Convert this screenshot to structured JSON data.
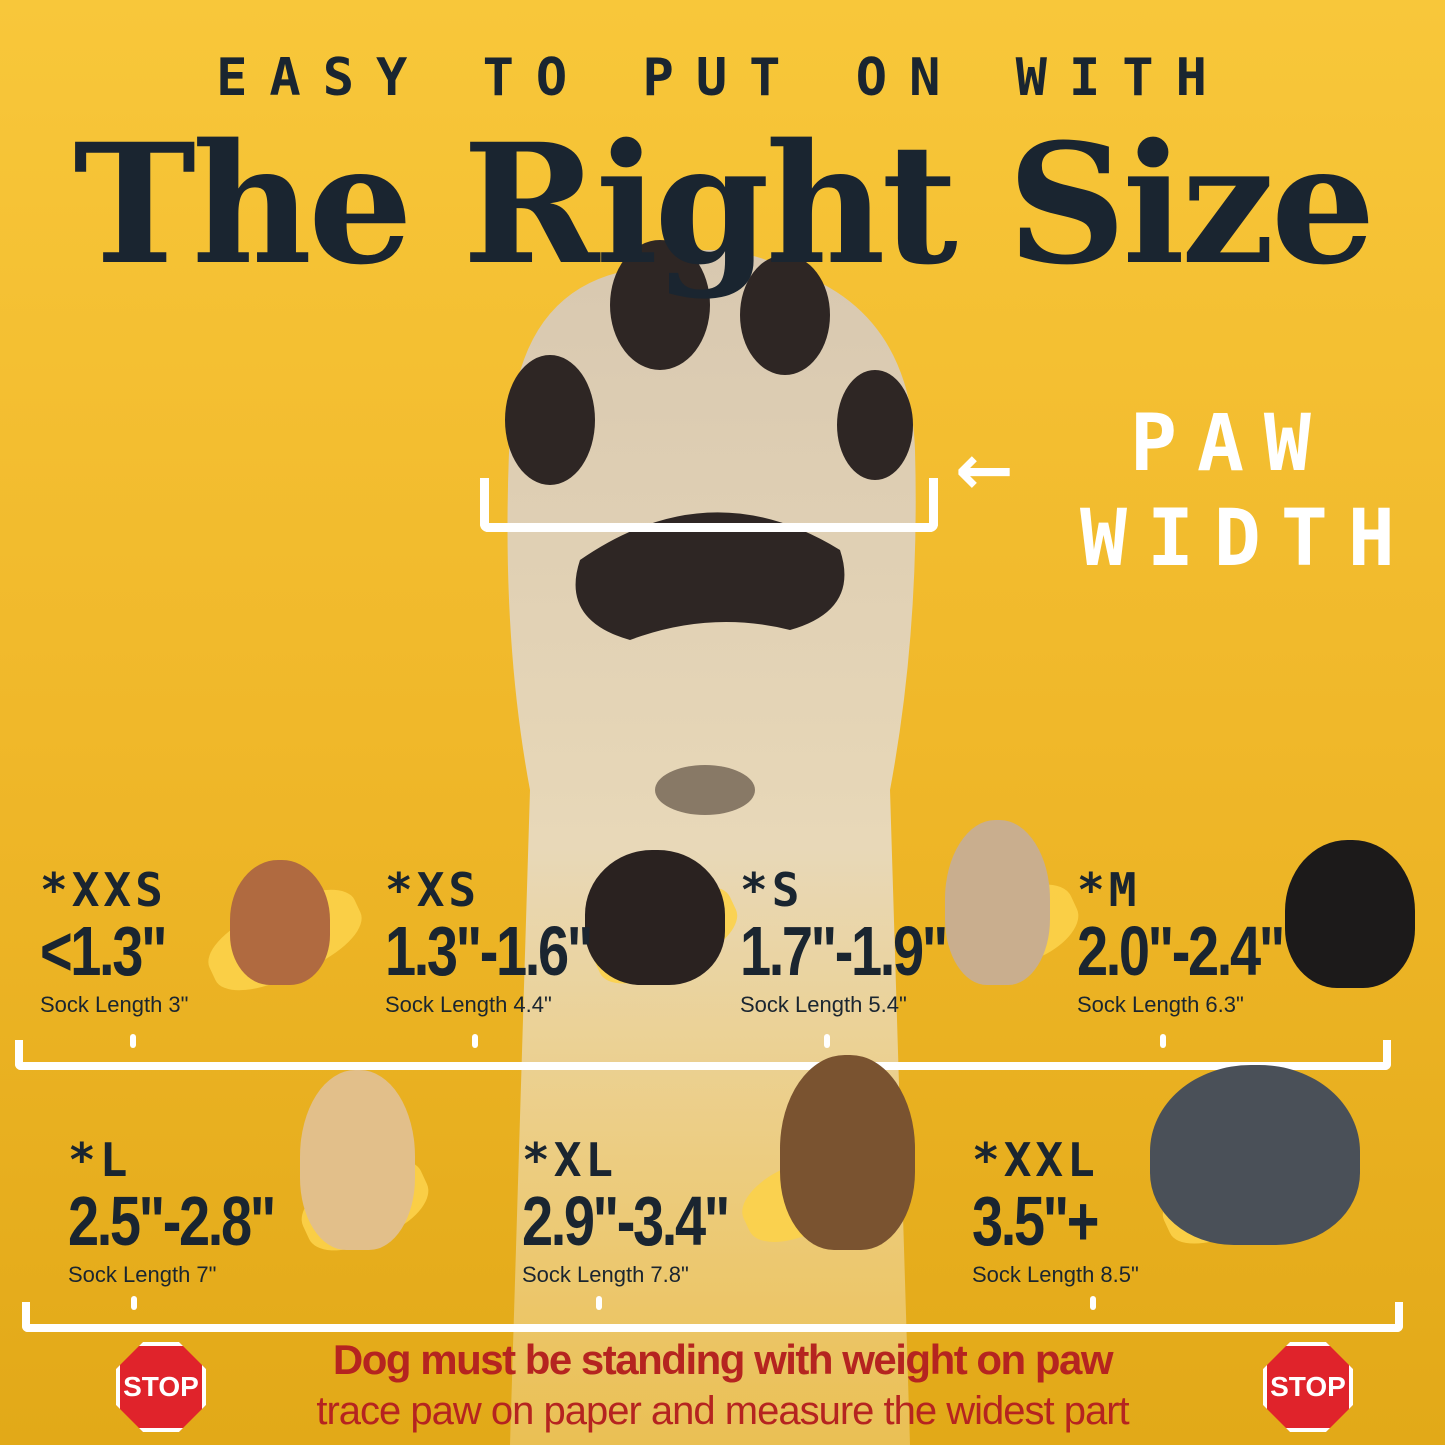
{
  "header": {
    "eyebrow": "EASY TO PUT ON WITH",
    "title": "The Right Size"
  },
  "paw_label": {
    "line1": "PAW",
    "line2": "WIDTH"
  },
  "sizes_row1": [
    {
      "code": "*XXS",
      "range": "<1.3\"",
      "sock": "Sock Length 3\"",
      "dog": "chihuahua",
      "color": "#b06a40"
    },
    {
      "code": "*XS",
      "range": "1.3\"-1.6\"",
      "sock": "Sock Length 4.4\"",
      "dog": "yorkshire-terrier",
      "color": "#2a2220"
    },
    {
      "code": "*S",
      "range": "1.7\"-1.9\"",
      "sock": "Sock Length 5.4\"",
      "dog": "french-bulldog",
      "color": "#c9ae8e"
    },
    {
      "code": "*M",
      "range": "2.0\"-2.4\"",
      "sock": "Sock Length 6.3\"",
      "dog": "bernese-mountain-dog",
      "color": "#1c1a1a"
    }
  ],
  "sizes_row2": [
    {
      "code": "*L",
      "range": "2.5\"-2.8\"",
      "sock": "Sock Length 7\"",
      "dog": "golden-retriever",
      "color": "#e2bf8a"
    },
    {
      "code": "*XL",
      "range": "2.9\"-3.4\"",
      "sock": "Sock Length 7.8\"",
      "dog": "german-shepherd",
      "color": "#7a5330"
    },
    {
      "code": "*XXL",
      "range": "3.5\"+",
      "sock": "Sock Length 8.5\"",
      "dog": "great-dane",
      "color": "#4a5058"
    }
  ],
  "warning": {
    "line1": "Dog must be standing with weight on paw",
    "line2": "trace paw on paper and measure the widest part",
    "stop_label": "STOP"
  },
  "colors": {
    "background": "#f0b82a",
    "text": "#1a2530",
    "warning": "#b52420",
    "stop": "#e0232b"
  }
}
